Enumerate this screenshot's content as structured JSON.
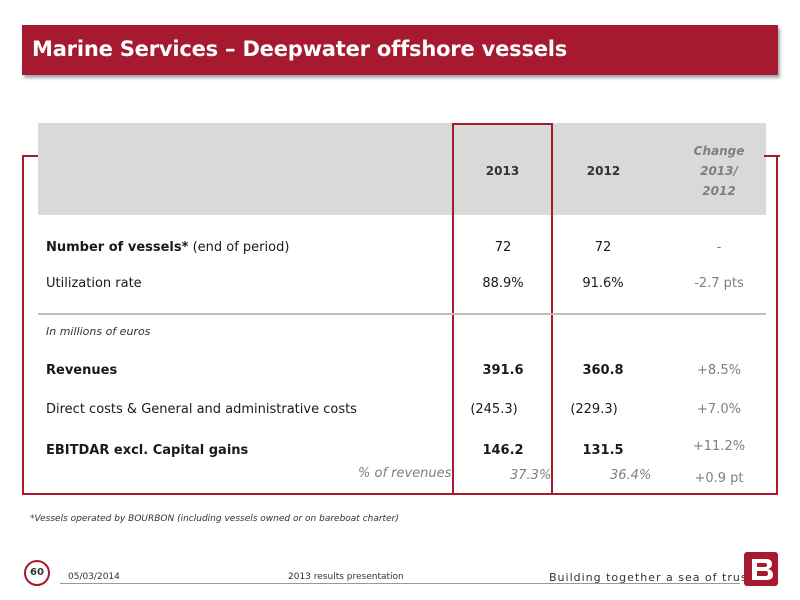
{
  "header": {
    "title": "Marine Services – Deepwater offshore vessels"
  },
  "table": {
    "col_2013": "2013",
    "col_2012": "2012",
    "col_change_l1": "Change",
    "col_change_l2": "2013/",
    "col_change_l3": "2012",
    "rows": [
      {
        "label_bold": "Number of vessels*",
        "label_rest": " (end of period)",
        "v2013": "72",
        "v2012": "72",
        "change": "-"
      },
      {
        "label": "Utilization rate",
        "v2013": "88.9%",
        "v2012": "91.6%",
        "change": "-2.7 pts"
      }
    ],
    "unit_note": "In millions of euros",
    "fin_rows": [
      {
        "label": "Revenues",
        "v2013": "391.6",
        "v2012": "360.8",
        "change": "+8.5%"
      },
      {
        "label": "Direct costs & General and administrative costs",
        "v2013": "(245.3)",
        "v2012": "(229.3)",
        "change": "+7.0%"
      },
      {
        "label": "EBITDAR excl. Capital gains",
        "v2013": "146.2",
        "v2012": "131.5",
        "change": "+11.2%"
      }
    ],
    "pct_revenues_label": "% of revenues",
    "pct_2013": "37.3%",
    "pct_2012": "36.4%",
    "pct_change": "+0.9 pt"
  },
  "footnote": "*Vessels operated by BOURBON (including vessels owned or on bareboat charter)",
  "footer": {
    "page_number": "60",
    "date": "05/03/2014",
    "presentation": "2013 results presentation",
    "slogan": "Building together a sea of trust"
  },
  "colors": {
    "brand_red": "#a6192e",
    "header_gray": "#d9d9d9",
    "muted_text": "#7f7f7f"
  }
}
